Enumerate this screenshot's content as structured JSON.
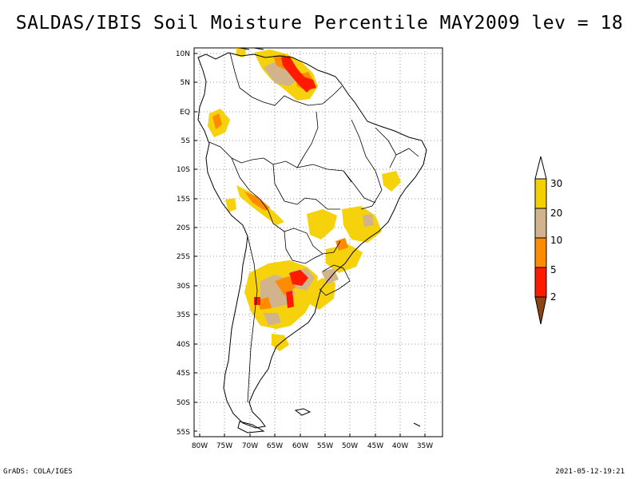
{
  "title": "SALDAS/IBIS Soil Moisture Percentile MAY2009 lev = 18",
  "footer": {
    "left": "GrADS: COLA/IGES",
    "right": "2021-05-12-19:21"
  },
  "map": {
    "lat_labels": [
      "10N",
      "5N",
      "EQ",
      "5S",
      "10S",
      "15S",
      "20S",
      "25S",
      "30S",
      "35S",
      "40S",
      "45S",
      "50S",
      "55S"
    ],
    "lon_labels": [
      "80W",
      "75W",
      "70W",
      "65W",
      "60W",
      "55W",
      "50W",
      "45W",
      "40W",
      "35W"
    ]
  },
  "legend": {
    "labels": [
      "30",
      "20",
      "10",
      "5",
      "2"
    ],
    "colors": {
      "above30": "#ffffff",
      "b20_30": "#f5d000",
      "b10_20": "#d2b48c",
      "b5_10": "#ff8c00",
      "b2_5": "#ff1a00",
      "below2": "#8b4513"
    }
  }
}
